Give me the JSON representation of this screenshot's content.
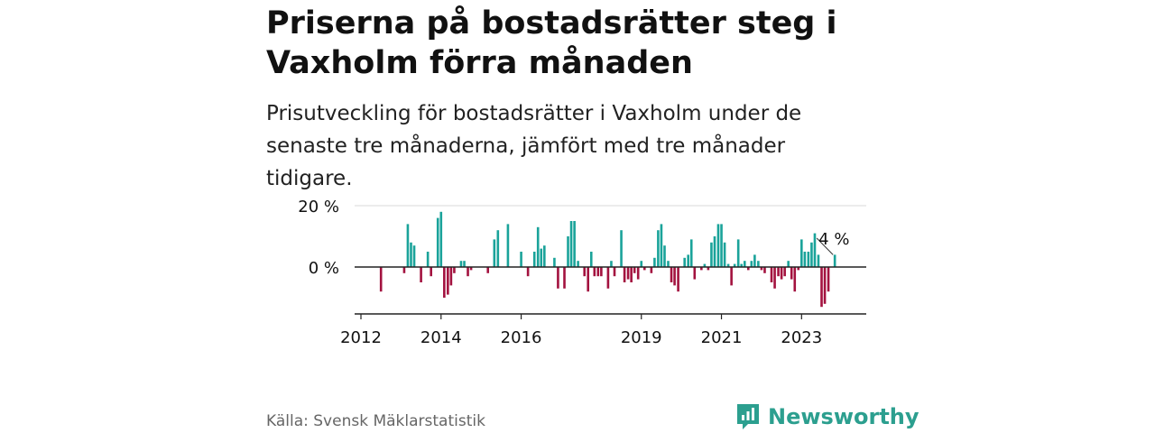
{
  "title": "Priserna på bostadsrätter steg i Vaxholm förra månaden",
  "subtitle": "Prisutveckling för bostadsrätter i Vaxholm under de senaste tre månaderna, jämfört med tre månader tidigare.",
  "source": "Källa: Svensk Mäklarstatistik",
  "brand": "Newsworthy",
  "colors": {
    "positive": "#1aa39a",
    "negative": "#a3123f",
    "text": "#111111",
    "grid": "#d8d8d8",
    "brand": "#2c9f8f"
  },
  "chart_data": {
    "type": "bar",
    "title": "Priserna på bostadsrätter steg i Vaxholm förra månaden",
    "xlabel": "",
    "ylabel": "",
    "ylim": [
      -15,
      20
    ],
    "x_range": [
      2012.0,
      2024.6
    ],
    "y_ticks": [
      {
        "value": 0,
        "label": "0 %"
      },
      {
        "value": 20,
        "label": "20 %"
      }
    ],
    "x_ticks": [
      {
        "value": 2012.0,
        "label": "2012"
      },
      {
        "value": 2014.0,
        "label": "2014"
      },
      {
        "value": 2016.0,
        "label": "2016"
      },
      {
        "value": 2019.0,
        "label": "2019"
      },
      {
        "value": 2021.0,
        "label": "2021"
      },
      {
        "value": 2023.0,
        "label": "2023"
      }
    ],
    "last_label": "4 %",
    "x": [
      2012.5,
      2013.08,
      2013.17,
      2013.25,
      2013.33,
      2013.5,
      2013.67,
      2013.75,
      2013.92,
      2014.0,
      2014.08,
      2014.17,
      2014.25,
      2014.33,
      2014.5,
      2014.58,
      2014.67,
      2014.75,
      2015.17,
      2015.33,
      2015.42,
      2015.67,
      2016.0,
      2016.17,
      2016.33,
      2016.42,
      2016.5,
      2016.58,
      2016.83,
      2016.92,
      2017.08,
      2017.17,
      2017.25,
      2017.33,
      2017.42,
      2017.58,
      2017.67,
      2017.75,
      2017.83,
      2017.92,
      2018.0,
      2018.17,
      2018.25,
      2018.33,
      2018.5,
      2018.58,
      2018.67,
      2018.75,
      2018.83,
      2018.92,
      2019.0,
      2019.08,
      2019.25,
      2019.33,
      2019.42,
      2019.5,
      2019.58,
      2019.67,
      2019.75,
      2019.83,
      2019.92,
      2020.08,
      2020.17,
      2020.25,
      2020.33,
      2020.5,
      2020.58,
      2020.67,
      2020.75,
      2020.83,
      2020.92,
      2021.0,
      2021.08,
      2021.17,
      2021.25,
      2021.33,
      2021.42,
      2021.5,
      2021.58,
      2021.67,
      2021.75,
      2021.83,
      2021.92,
      2022.0,
      2022.08,
      2022.25,
      2022.33,
      2022.42,
      2022.5,
      2022.58,
      2022.67,
      2022.75,
      2022.83,
      2022.92,
      2023.0,
      2023.08,
      2023.17,
      2023.25,
      2023.33,
      2023.42,
      2023.5,
      2023.58,
      2023.67,
      2023.83
    ],
    "values": [
      -8,
      -2,
      14,
      8,
      7,
      -5,
      5,
      -3,
      16,
      18,
      -10,
      -9,
      -6,
      -2,
      2,
      2,
      -3,
      -1,
      -2,
      9,
      12,
      14,
      5,
      -3,
      5,
      13,
      6,
      7,
      3,
      -7,
      -7,
      10,
      15,
      15,
      2,
      -3,
      -8,
      5,
      -3,
      -3,
      -3,
      -7,
      2,
      -3,
      12,
      -5,
      -4,
      -5,
      -2,
      -4,
      2,
      -1,
      -2,
      3,
      12,
      14,
      7,
      2,
      -5,
      -6,
      -8,
      3,
      4,
      9,
      -4,
      -1,
      1,
      -1,
      8,
      10,
      14,
      14,
      8,
      1,
      -6,
      1,
      9,
      1,
      2,
      -1,
      2,
      4,
      2,
      -1,
      -2,
      -5,
      -7,
      -3,
      -4,
      -3,
      2,
      -4,
      -8,
      -1,
      9,
      5,
      5,
      8,
      11,
      4,
      -13,
      -12,
      -8,
      4
    ]
  }
}
